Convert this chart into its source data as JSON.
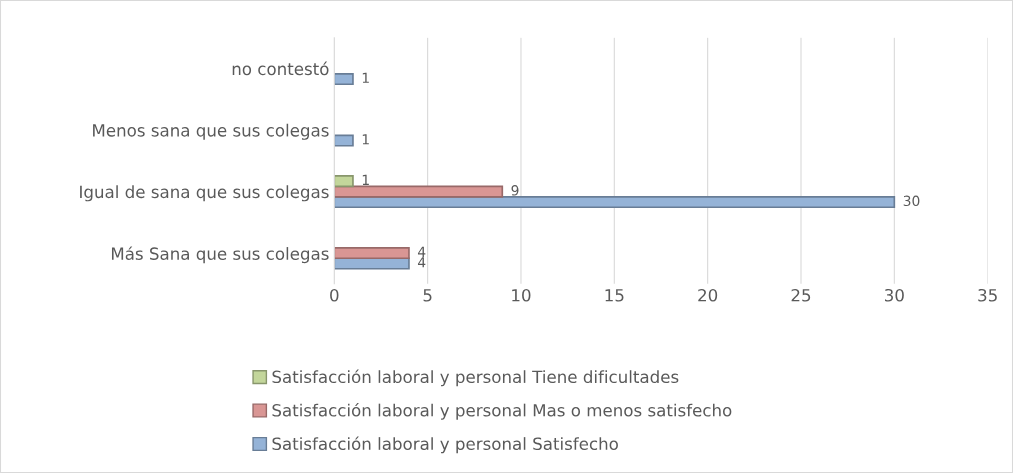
{
  "chart_data": {
    "type": "bar",
    "orientation": "horizontal",
    "categories": [
      "no contestó",
      "Menos sana que sus colegas",
      "Igual de sana que sus colegas",
      "Más Sana que sus colegas"
    ],
    "series": [
      {
        "name": "Satisfacción laboral y personal Satisfecho",
        "color": "#95b3d7",
        "values": [
          1,
          1,
          30,
          4
        ]
      },
      {
        "name": "Satisfacción laboral y personal Mas o menos satisfecho",
        "color": "#d99694",
        "values": [
          null,
          null,
          9,
          4
        ]
      },
      {
        "name": "Satisfacción laboral y personal Tiene dificultades",
        "color": "#c3d69b",
        "values": [
          null,
          null,
          1,
          null
        ]
      }
    ],
    "xlim": [
      0,
      35
    ],
    "xticks": [
      0,
      5,
      10,
      15,
      20,
      25,
      30,
      35
    ],
    "grid": "x",
    "legend": "bottom",
    "data_labels": true
  }
}
